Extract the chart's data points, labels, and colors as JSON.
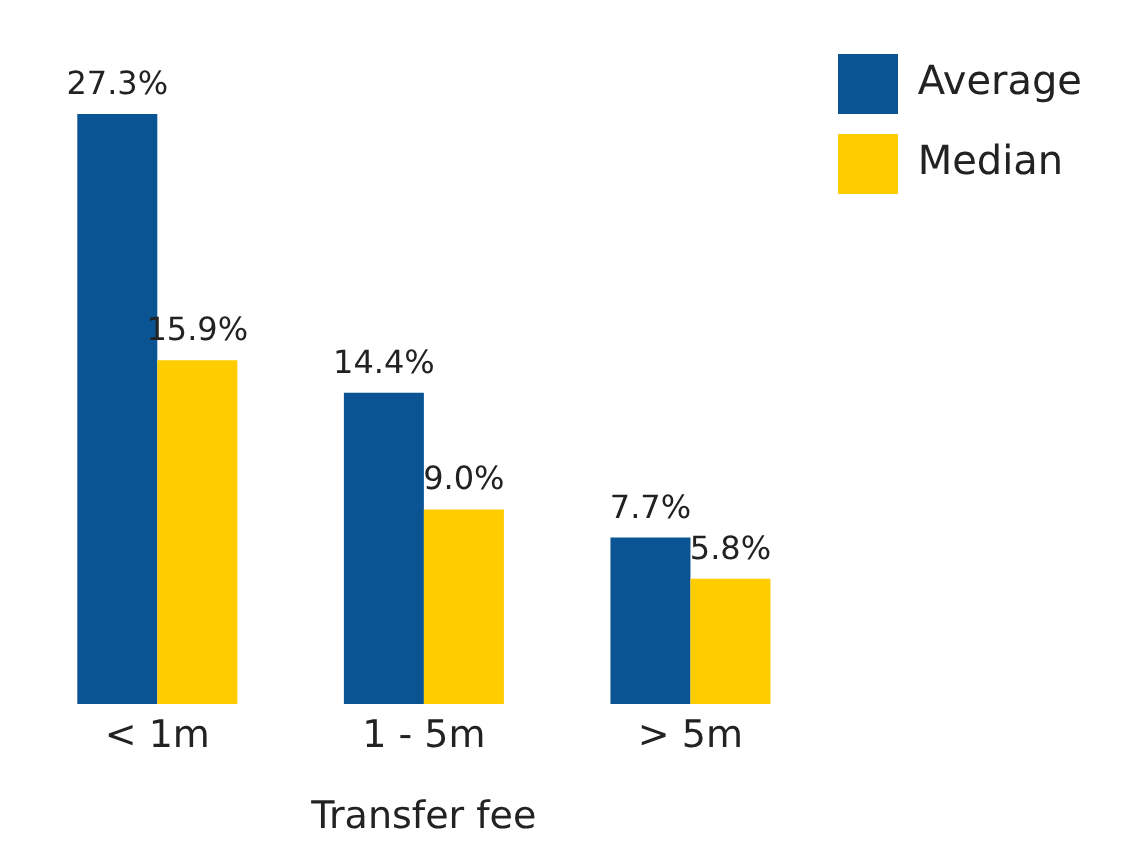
{
  "chart_data": {
    "type": "bar",
    "xlabel": "Transfer fee",
    "categories": [
      "< 1m",
      "1 - 5m",
      "> 5m"
    ],
    "series": [
      {
        "name": "Average",
        "color": "#0a5494",
        "values": [
          27.3,
          14.4,
          7.7
        ],
        "value_labels": [
          "27.3%",
          "14.4%",
          "7.7%"
        ]
      },
      {
        "name": "Median",
        "color": "#ffcc00",
        "values": [
          15.9,
          9.0,
          5.8
        ],
        "value_labels": [
          "15.9%",
          "9.0%",
          "5.8%"
        ]
      }
    ],
    "legend": "top right"
  }
}
